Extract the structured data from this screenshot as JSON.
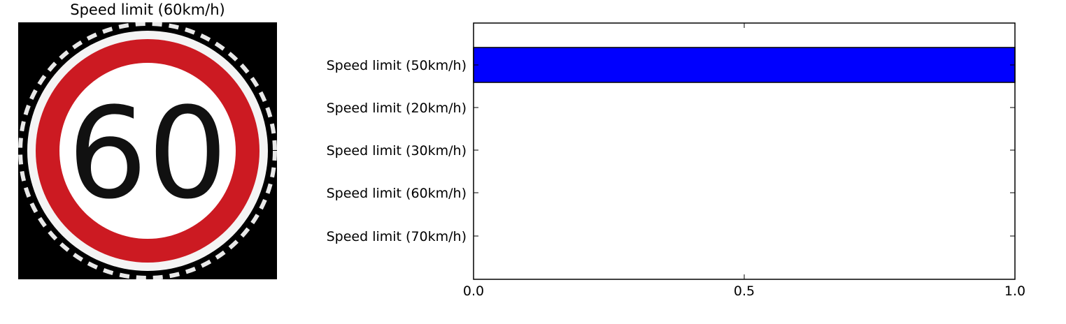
{
  "image_panel": {
    "title": "Speed limit (60km/h)",
    "sign_text": "60",
    "sign_colors": {
      "background": "#000000",
      "ring": "#cc1a22",
      "face": "#ffffff",
      "digits": "#111111"
    }
  },
  "chart_data": {
    "type": "bar",
    "orientation": "horizontal",
    "categories": [
      "Speed limit (50km/h)",
      "Speed limit (20km/h)",
      "Speed limit (30km/h)",
      "Speed limit (60km/h)",
      "Speed limit (70km/h)"
    ],
    "values": [
      1.0,
      0.0,
      0.0,
      0.0,
      0.0
    ],
    "xlim": [
      0,
      1
    ],
    "xticks": [
      "0.0",
      "0.5",
      "1.0"
    ],
    "bar_color": "#0000ff",
    "grid": false
  }
}
